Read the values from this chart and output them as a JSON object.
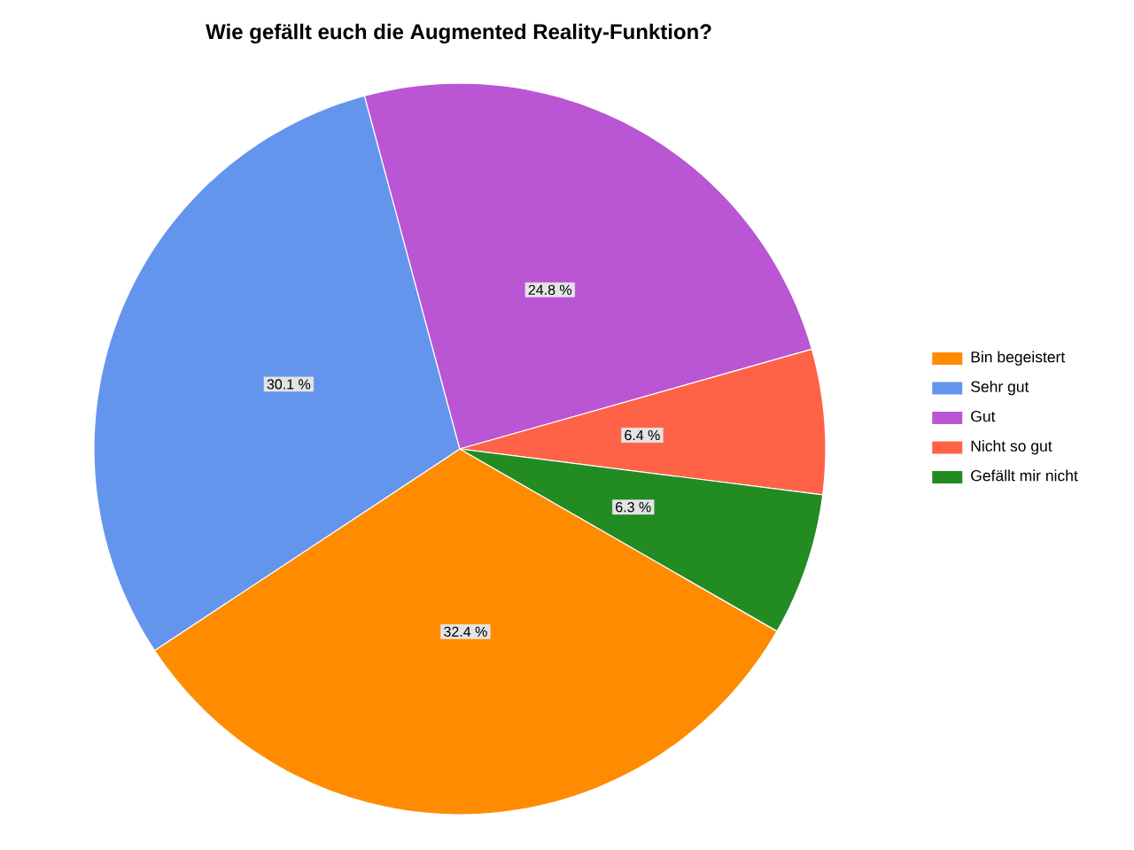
{
  "chart_data": {
    "type": "pie",
    "title": "Wie gefällt euch die Augmented Reality-Funktion?",
    "categories": [
      "Bin begeistert",
      "Sehr gut",
      "Gut",
      "Nicht so gut",
      "Gefällt mir nicht"
    ],
    "values": [
      32.4,
      30.1,
      24.8,
      6.4,
      6.3
    ],
    "colors": [
      "#ff8c00",
      "#6495ed",
      "#ba55d3",
      "#ff6347",
      "#228b22"
    ],
    "value_labels": [
      "32.4 %",
      "30.1 %",
      "24.8 %",
      "6.4 %",
      "6.3 %"
    ],
    "legend": "right"
  }
}
